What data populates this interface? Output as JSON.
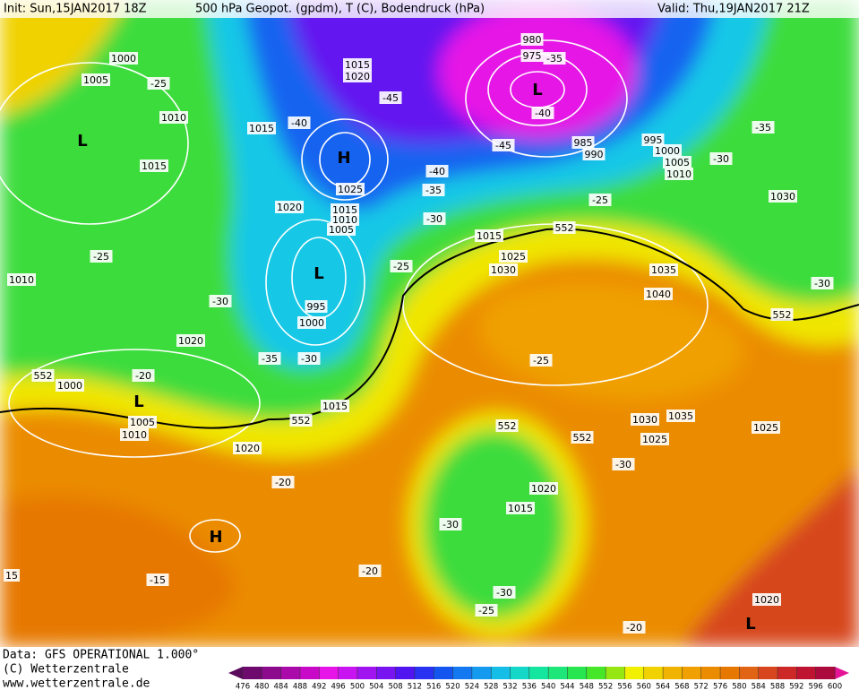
{
  "header": {
    "init": "Init: Sun,15JAN2017 18Z",
    "title": "500 hPa Geopot. (gpdm), T (C), Bodendruck (hPa)",
    "valid": "Valid: Thu,19JAN2017 21Z"
  },
  "footer": {
    "data": "Data: GFS OPERATIONAL 1.000°",
    "copyright": "(C) Wetterzentrale",
    "url": "www.wetterzentrale.de"
  },
  "map": {
    "labels": [
      "1000",
      "1005",
      "-25",
      "1010",
      "L",
      "1015",
      "1015",
      "-40",
      "1015",
      "1020",
      "-45",
      "H",
      "1025",
      "1020",
      "1015",
      "1010",
      "1005",
      "-30",
      "-35",
      "-40",
      "-45",
      "980",
      "975",
      "-35",
      "L",
      "-40",
      "985",
      "990",
      "995",
      "1000",
      "1005",
      "1010",
      "-30",
      "-35",
      "-25",
      "1030",
      "552",
      "1015",
      "1025",
      "1030",
      "1035",
      "1040",
      "-25",
      "-25",
      "1010",
      "-30",
      "L",
      "995",
      "1000",
      "-30",
      "552",
      "1020",
      "-35",
      "-30",
      "-25",
      "552",
      "1000",
      "-20",
      "L",
      "1005",
      "1010",
      "552",
      "1015",
      "1030",
      "1035",
      "552",
      "552",
      "1025",
      "1025",
      "1020",
      "-30",
      "-20",
      "1020",
      "1015",
      "-30",
      "H",
      "15",
      "-15",
      "-20",
      "-30",
      "-25",
      "1020",
      "L",
      "-20"
    ]
  },
  "colorbar": {
    "ticks": [
      476,
      480,
      484,
      488,
      492,
      496,
      500,
      504,
      508,
      512,
      516,
      520,
      524,
      528,
      532,
      536,
      540,
      544,
      548,
      552,
      556,
      560,
      564,
      568,
      572,
      576,
      580,
      584,
      588,
      592,
      596,
      600
    ],
    "colors": [
      "#6e0a6e",
      "#8c0a8c",
      "#aa0aaa",
      "#c80ac8",
      "#e614e6",
      "#c814f0",
      "#a014f0",
      "#7814f0",
      "#5014f0",
      "#2832f0",
      "#1455f0",
      "#1478f0",
      "#149bf0",
      "#14bee6",
      "#14d7c8",
      "#14e6a0",
      "#1ee678",
      "#28e650",
      "#46e628",
      "#96e614",
      "#f0f000",
      "#f0d200",
      "#f0b400",
      "#f0a000",
      "#eb8c00",
      "#e67800",
      "#e16414",
      "#d7461e",
      "#cd2828",
      "#be1432",
      "#aa0a3c"
    ],
    "end_colors": [
      "#5a0a5a",
      "#e61496"
    ]
  }
}
